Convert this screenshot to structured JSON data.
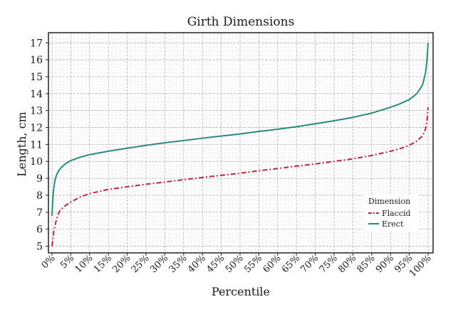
{
  "chart_data": {
    "type": "line",
    "title": "Girth Dimensions",
    "xlabel": "Percentile",
    "ylabel": "Length, cm",
    "xlim": [
      0,
      100
    ],
    "ylim": [
      4.6,
      17.6
    ],
    "x_ticks": [
      "0%",
      "5%",
      "10%",
      "15%",
      "20%",
      "25%",
      "30%",
      "35%",
      "40%",
      "45%",
      "50%",
      "55%",
      "60%",
      "65%",
      "70%",
      "75%",
      "80%",
      "85%",
      "90%",
      "95%",
      "100%"
    ],
    "y_ticks": [
      5,
      6,
      7,
      8,
      9,
      10,
      11,
      12,
      13,
      14,
      15,
      16,
      17
    ],
    "grid": true,
    "legend": {
      "title": "Dimension",
      "placement": "bottom-right"
    },
    "series": [
      {
        "name": "Flaccid",
        "color": "#c0234a",
        "dash": "dash-dot",
        "x": [
          0,
          0.2,
          0.5,
          1,
          1.5,
          2,
          3,
          5,
          7.5,
          10,
          15,
          20,
          25,
          30,
          35,
          40,
          45,
          50,
          55,
          60,
          65,
          70,
          75,
          80,
          85,
          90,
          92.5,
          95,
          97,
          98.5,
          99.3,
          99.7,
          100
        ],
        "y": [
          5.0,
          5.3,
          5.9,
          6.4,
          6.8,
          7.05,
          7.3,
          7.6,
          7.9,
          8.1,
          8.35,
          8.5,
          8.65,
          8.78,
          8.92,
          9.05,
          9.18,
          9.3,
          9.45,
          9.58,
          9.72,
          9.85,
          10.0,
          10.15,
          10.35,
          10.6,
          10.75,
          10.95,
          11.2,
          11.5,
          11.9,
          12.4,
          13.2
        ]
      },
      {
        "name": "Erect",
        "color": "#2a8a7c",
        "dash": "solid",
        "x": [
          0,
          0.15,
          0.4,
          0.8,
          1.2,
          1.8,
          2.5,
          3.5,
          5,
          7.5,
          10,
          15,
          20,
          25,
          30,
          35,
          40,
          45,
          50,
          55,
          60,
          65,
          70,
          75,
          80,
          85,
          90,
          92.5,
          95,
          97,
          98.5,
          99.3,
          99.7,
          100
        ],
        "y": [
          6.8,
          7.5,
          8.3,
          8.9,
          9.2,
          9.45,
          9.65,
          9.85,
          10.05,
          10.25,
          10.4,
          10.6,
          10.78,
          10.95,
          11.1,
          11.23,
          11.37,
          11.5,
          11.62,
          11.77,
          11.9,
          12.05,
          12.22,
          12.4,
          12.6,
          12.85,
          13.2,
          13.4,
          13.65,
          14.0,
          14.5,
          15.2,
          16.0,
          17.0
        ]
      }
    ]
  }
}
